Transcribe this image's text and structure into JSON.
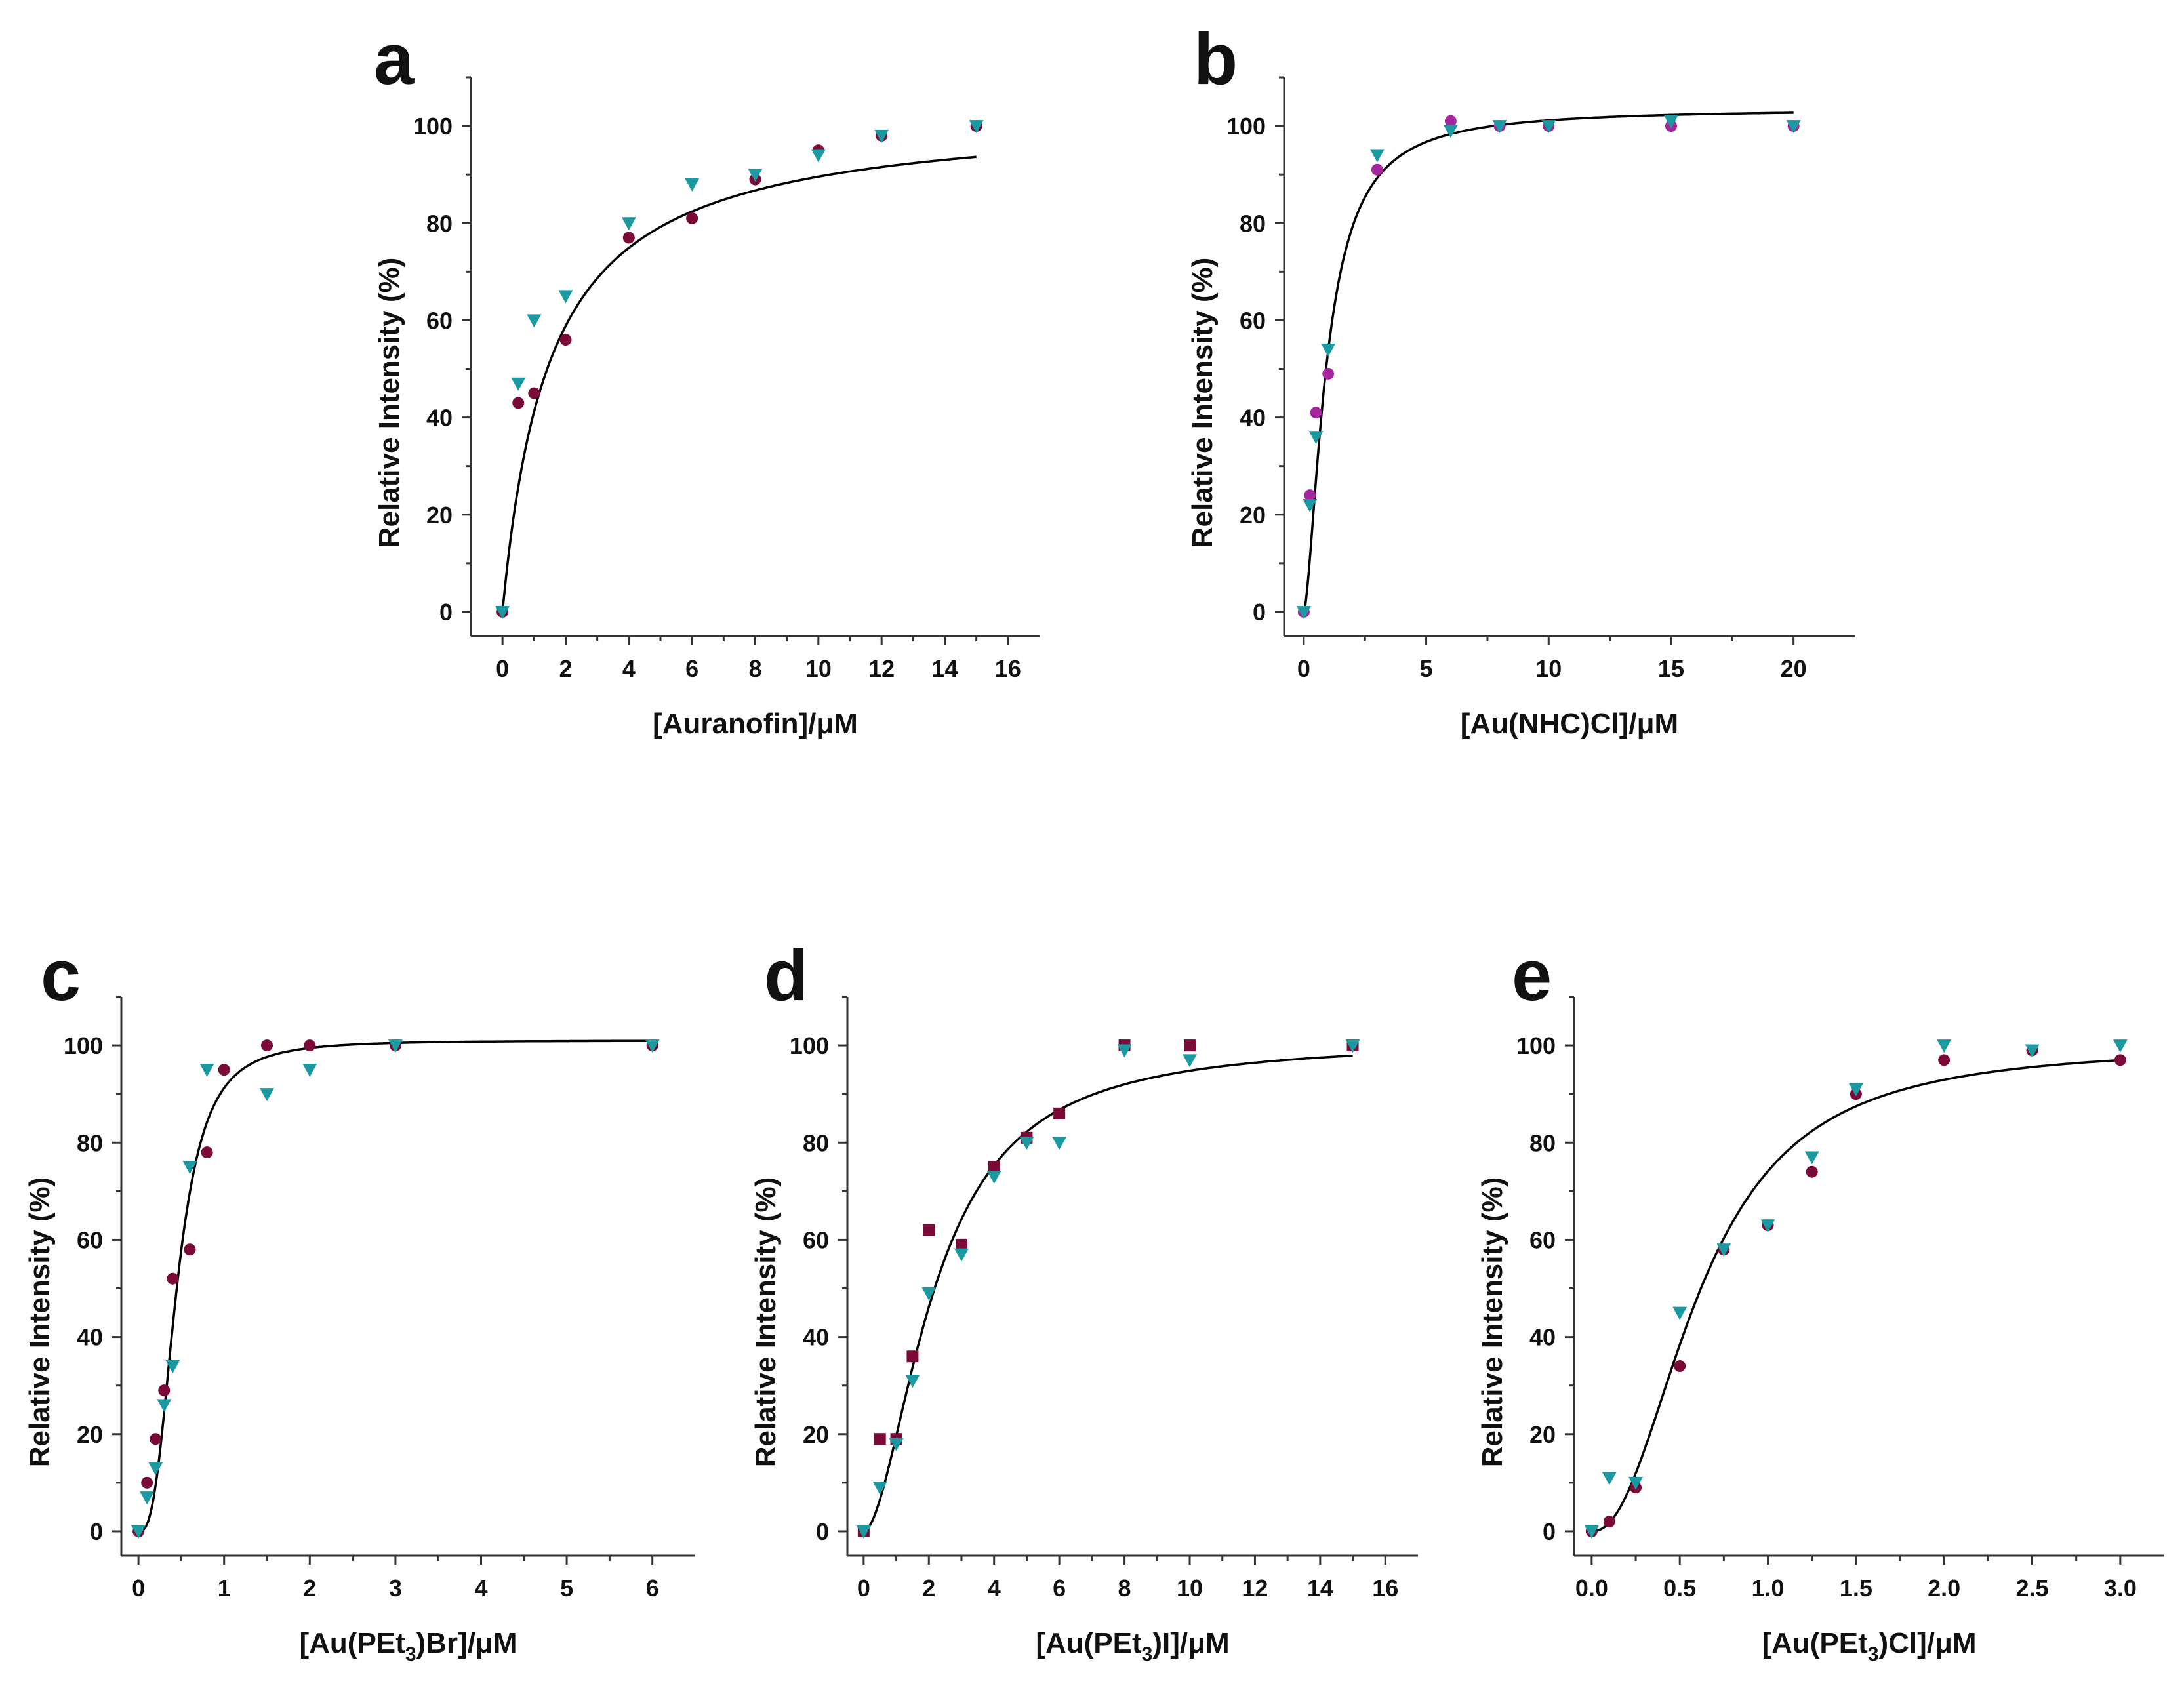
{
  "figure": {
    "background": "#ffffff",
    "colors": {
      "series1": "#7a0a38",
      "series2": "#1a9aa0",
      "series1_alt": "#a6259f",
      "fit": "#000000"
    }
  },
  "chart_data": [
    {
      "id": "a",
      "type": "scatter",
      "letter": "a",
      "xlabel_parts": [
        {
          "text": "[Auranofin]/μM",
          "sub": false
        }
      ],
      "ylabel": "Relative Intensity (%)",
      "xlim": [
        -1,
        17
      ],
      "ylim": [
        -5,
        110
      ],
      "xticks": [
        0,
        2,
        4,
        6,
        8,
        10,
        12,
        14,
        16
      ],
      "xtick_labels": [
        "0",
        "2",
        "4",
        "6",
        "8",
        "10",
        "12",
        "14",
        "16"
      ],
      "yticks": [
        0,
        20,
        40,
        60,
        80,
        100
      ],
      "ytick_labels": [
        "0",
        "20",
        "40",
        "60",
        "80",
        "100"
      ],
      "fit": {
        "model": "hill",
        "ymax": 103,
        "k": 1.5,
        "n": 1.0,
        "xrange": [
          0,
          15
        ]
      },
      "series": [
        {
          "name": "series1",
          "marker": "circle",
          "color": "#7a0a38",
          "x": [
            0,
            0.5,
            1,
            2,
            4,
            6,
            8,
            10,
            12,
            15
          ],
          "y": [
            0,
            43,
            45,
            56,
            77,
            81,
            89,
            95,
            98,
            100
          ]
        },
        {
          "name": "series2",
          "marker": "triangle-down",
          "color": "#1a9aa0",
          "x": [
            0,
            0.5,
            1,
            2,
            4,
            6,
            8,
            10,
            12,
            15
          ],
          "y": [
            0,
            47,
            60,
            65,
            80,
            88,
            90,
            94,
            98,
            100
          ]
        }
      ]
    },
    {
      "id": "b",
      "type": "scatter",
      "letter": "b",
      "xlabel_parts": [
        {
          "text": "[Au(NHC)Cl]/μM",
          "sub": false
        }
      ],
      "ylabel": "Relative Intensity (%)",
      "xlim": [
        -0.8,
        22.5
      ],
      "ylim": [
        -5,
        110
      ],
      "xticks": [
        0,
        5,
        10,
        15,
        20
      ],
      "xtick_labels": [
        "0",
        "5",
        "10",
        "15",
        "20"
      ],
      "yticks": [
        0,
        20,
        40,
        60,
        80,
        100
      ],
      "ytick_labels": [
        "0",
        "20",
        "40",
        "60",
        "80",
        "100"
      ],
      "fit": {
        "model": "hill",
        "ymax": 103.5,
        "k": 0.95,
        "n": 1.6,
        "xrange": [
          0,
          20
        ]
      },
      "series": [
        {
          "name": "series1",
          "marker": "circle",
          "color": "#a6259f",
          "x": [
            0,
            0.25,
            0.5,
            1,
            3,
            6,
            8,
            10,
            15,
            20
          ],
          "y": [
            0,
            24,
            41,
            49,
            91,
            101,
            100,
            100,
            100,
            100
          ]
        },
        {
          "name": "series2",
          "marker": "triangle-down",
          "color": "#1a9aa0",
          "x": [
            0,
            0.25,
            0.5,
            1,
            3,
            6,
            8,
            10,
            15,
            20
          ],
          "y": [
            0,
            22,
            36,
            54,
            94,
            99,
            100,
            100,
            101,
            100
          ]
        }
      ]
    },
    {
      "id": "c",
      "type": "scatter",
      "letter": "c",
      "xlabel_parts": [
        {
          "text": "[Au(PEt",
          "sub": false
        },
        {
          "text": "3",
          "sub": true
        },
        {
          "text": ")Br]/μM",
          "sub": false
        }
      ],
      "ylabel": "Relative Intensity (%)",
      "xlim": [
        -0.2,
        6.5
      ],
      "ylim": [
        -5,
        110
      ],
      "xticks": [
        0,
        1,
        2,
        3,
        4,
        5,
        6
      ],
      "xtick_labels": [
        "0",
        "1",
        "2",
        "3",
        "4",
        "5",
        "6"
      ],
      "yticks": [
        0,
        20,
        40,
        60,
        80,
        100
      ],
      "ytick_labels": [
        "0",
        "20",
        "40",
        "60",
        "80",
        "100"
      ],
      "fit": {
        "model": "hill",
        "ymax": 101,
        "k": 0.45,
        "n": 2.8,
        "xrange": [
          0,
          6
        ]
      },
      "series": [
        {
          "name": "series1",
          "marker": "circle",
          "color": "#7a0a38",
          "x": [
            0,
            0.1,
            0.2,
            0.3,
            0.4,
            0.6,
            0.8,
            1,
            1.5,
            2,
            3,
            6
          ],
          "y": [
            0,
            10,
            19,
            29,
            52,
            58,
            78,
            95,
            100,
            100,
            100,
            100
          ]
        },
        {
          "name": "series2",
          "marker": "triangle-down",
          "color": "#1a9aa0",
          "x": [
            0,
            0.1,
            0.2,
            0.3,
            0.4,
            0.6,
            0.8,
            1.5,
            2,
            3,
            6
          ],
          "y": [
            0,
            7,
            13,
            26,
            34,
            75,
            95,
            90,
            95,
            100,
            100
          ]
        }
      ]
    },
    {
      "id": "d",
      "type": "scatter",
      "letter": "d",
      "xlabel_parts": [
        {
          "text": "[Au(PEt",
          "sub": false
        },
        {
          "text": "3",
          "sub": true
        },
        {
          "text": ")I]/μM",
          "sub": false
        }
      ],
      "ylabel": "Relative Intensity (%)",
      "xlim": [
        -0.5,
        17
      ],
      "ylim": [
        -5,
        110
      ],
      "xticks": [
        0,
        2,
        4,
        6,
        8,
        10,
        12,
        14,
        16
      ],
      "xtick_labels": [
        "0",
        "2",
        "4",
        "6",
        "8",
        "10",
        "12",
        "14",
        "16"
      ],
      "yticks": [
        0,
        20,
        40,
        60,
        80,
        100
      ],
      "ytick_labels": [
        "0",
        "20",
        "40",
        "60",
        "80",
        "100"
      ],
      "fit": {
        "model": "hill",
        "ymax": 101,
        "k": 2.2,
        "n": 1.8,
        "xrange": [
          0,
          15
        ]
      },
      "series": [
        {
          "name": "series1",
          "marker": "square",
          "color": "#7a0a38",
          "x": [
            0,
            0.5,
            1,
            1.5,
            2,
            3,
            4,
            5,
            6,
            8,
            10,
            15
          ],
          "y": [
            0,
            19,
            19,
            36,
            62,
            59,
            75,
            81,
            86,
            100,
            100,
            100
          ]
        },
        {
          "name": "series2",
          "marker": "triangle-down",
          "color": "#1a9aa0",
          "x": [
            0,
            0.5,
            1,
            1.5,
            2,
            3,
            4,
            5,
            6,
            8,
            10,
            15
          ],
          "y": [
            0,
            9,
            18,
            31,
            49,
            57,
            73,
            80,
            80,
            99,
            97,
            100
          ]
        }
      ]
    },
    {
      "id": "e",
      "type": "scatter",
      "letter": "e",
      "xlabel_parts": [
        {
          "text": "[Au(PEt",
          "sub": false
        },
        {
          "text": "3",
          "sub": true
        },
        {
          "text": ")Cl]/μM",
          "sub": false
        }
      ],
      "ylabel": "Relative Intensity (%)",
      "xlim": [
        -0.1,
        3.25
      ],
      "ylim": [
        -5,
        110
      ],
      "xticks": [
        0,
        0.5,
        1,
        1.5,
        2,
        2.5,
        3
      ],
      "xtick_labels": [
        "0.0",
        "0.5",
        "1.0",
        "1.5",
        "2.0",
        "2.5",
        "3.0"
      ],
      "yticks": [
        0,
        20,
        40,
        60,
        80,
        100
      ],
      "ytick_labels": [
        "0",
        "20",
        "40",
        "60",
        "80",
        "100"
      ],
      "fit": {
        "model": "hill",
        "ymax": 100,
        "k": 0.62,
        "n": 2.2,
        "xrange": [
          0,
          3
        ]
      },
      "series": [
        {
          "name": "series1",
          "marker": "circle",
          "color": "#7a0a38",
          "x": [
            0,
            0.1,
            0.25,
            0.5,
            0.75,
            1,
            1.25,
            1.5,
            2,
            2.5,
            3
          ],
          "y": [
            0,
            2,
            9,
            34,
            58,
            63,
            74,
            90,
            97,
            99,
            97
          ]
        },
        {
          "name": "series2",
          "marker": "triangle-down",
          "color": "#1a9aa0",
          "x": [
            0,
            0.1,
            0.25,
            0.5,
            0.75,
            1,
            1.25,
            1.5,
            2,
            2.5,
            3
          ],
          "y": [
            0,
            11,
            10,
            45,
            58,
            63,
            77,
            91,
            100,
            99,
            100
          ]
        }
      ]
    }
  ]
}
